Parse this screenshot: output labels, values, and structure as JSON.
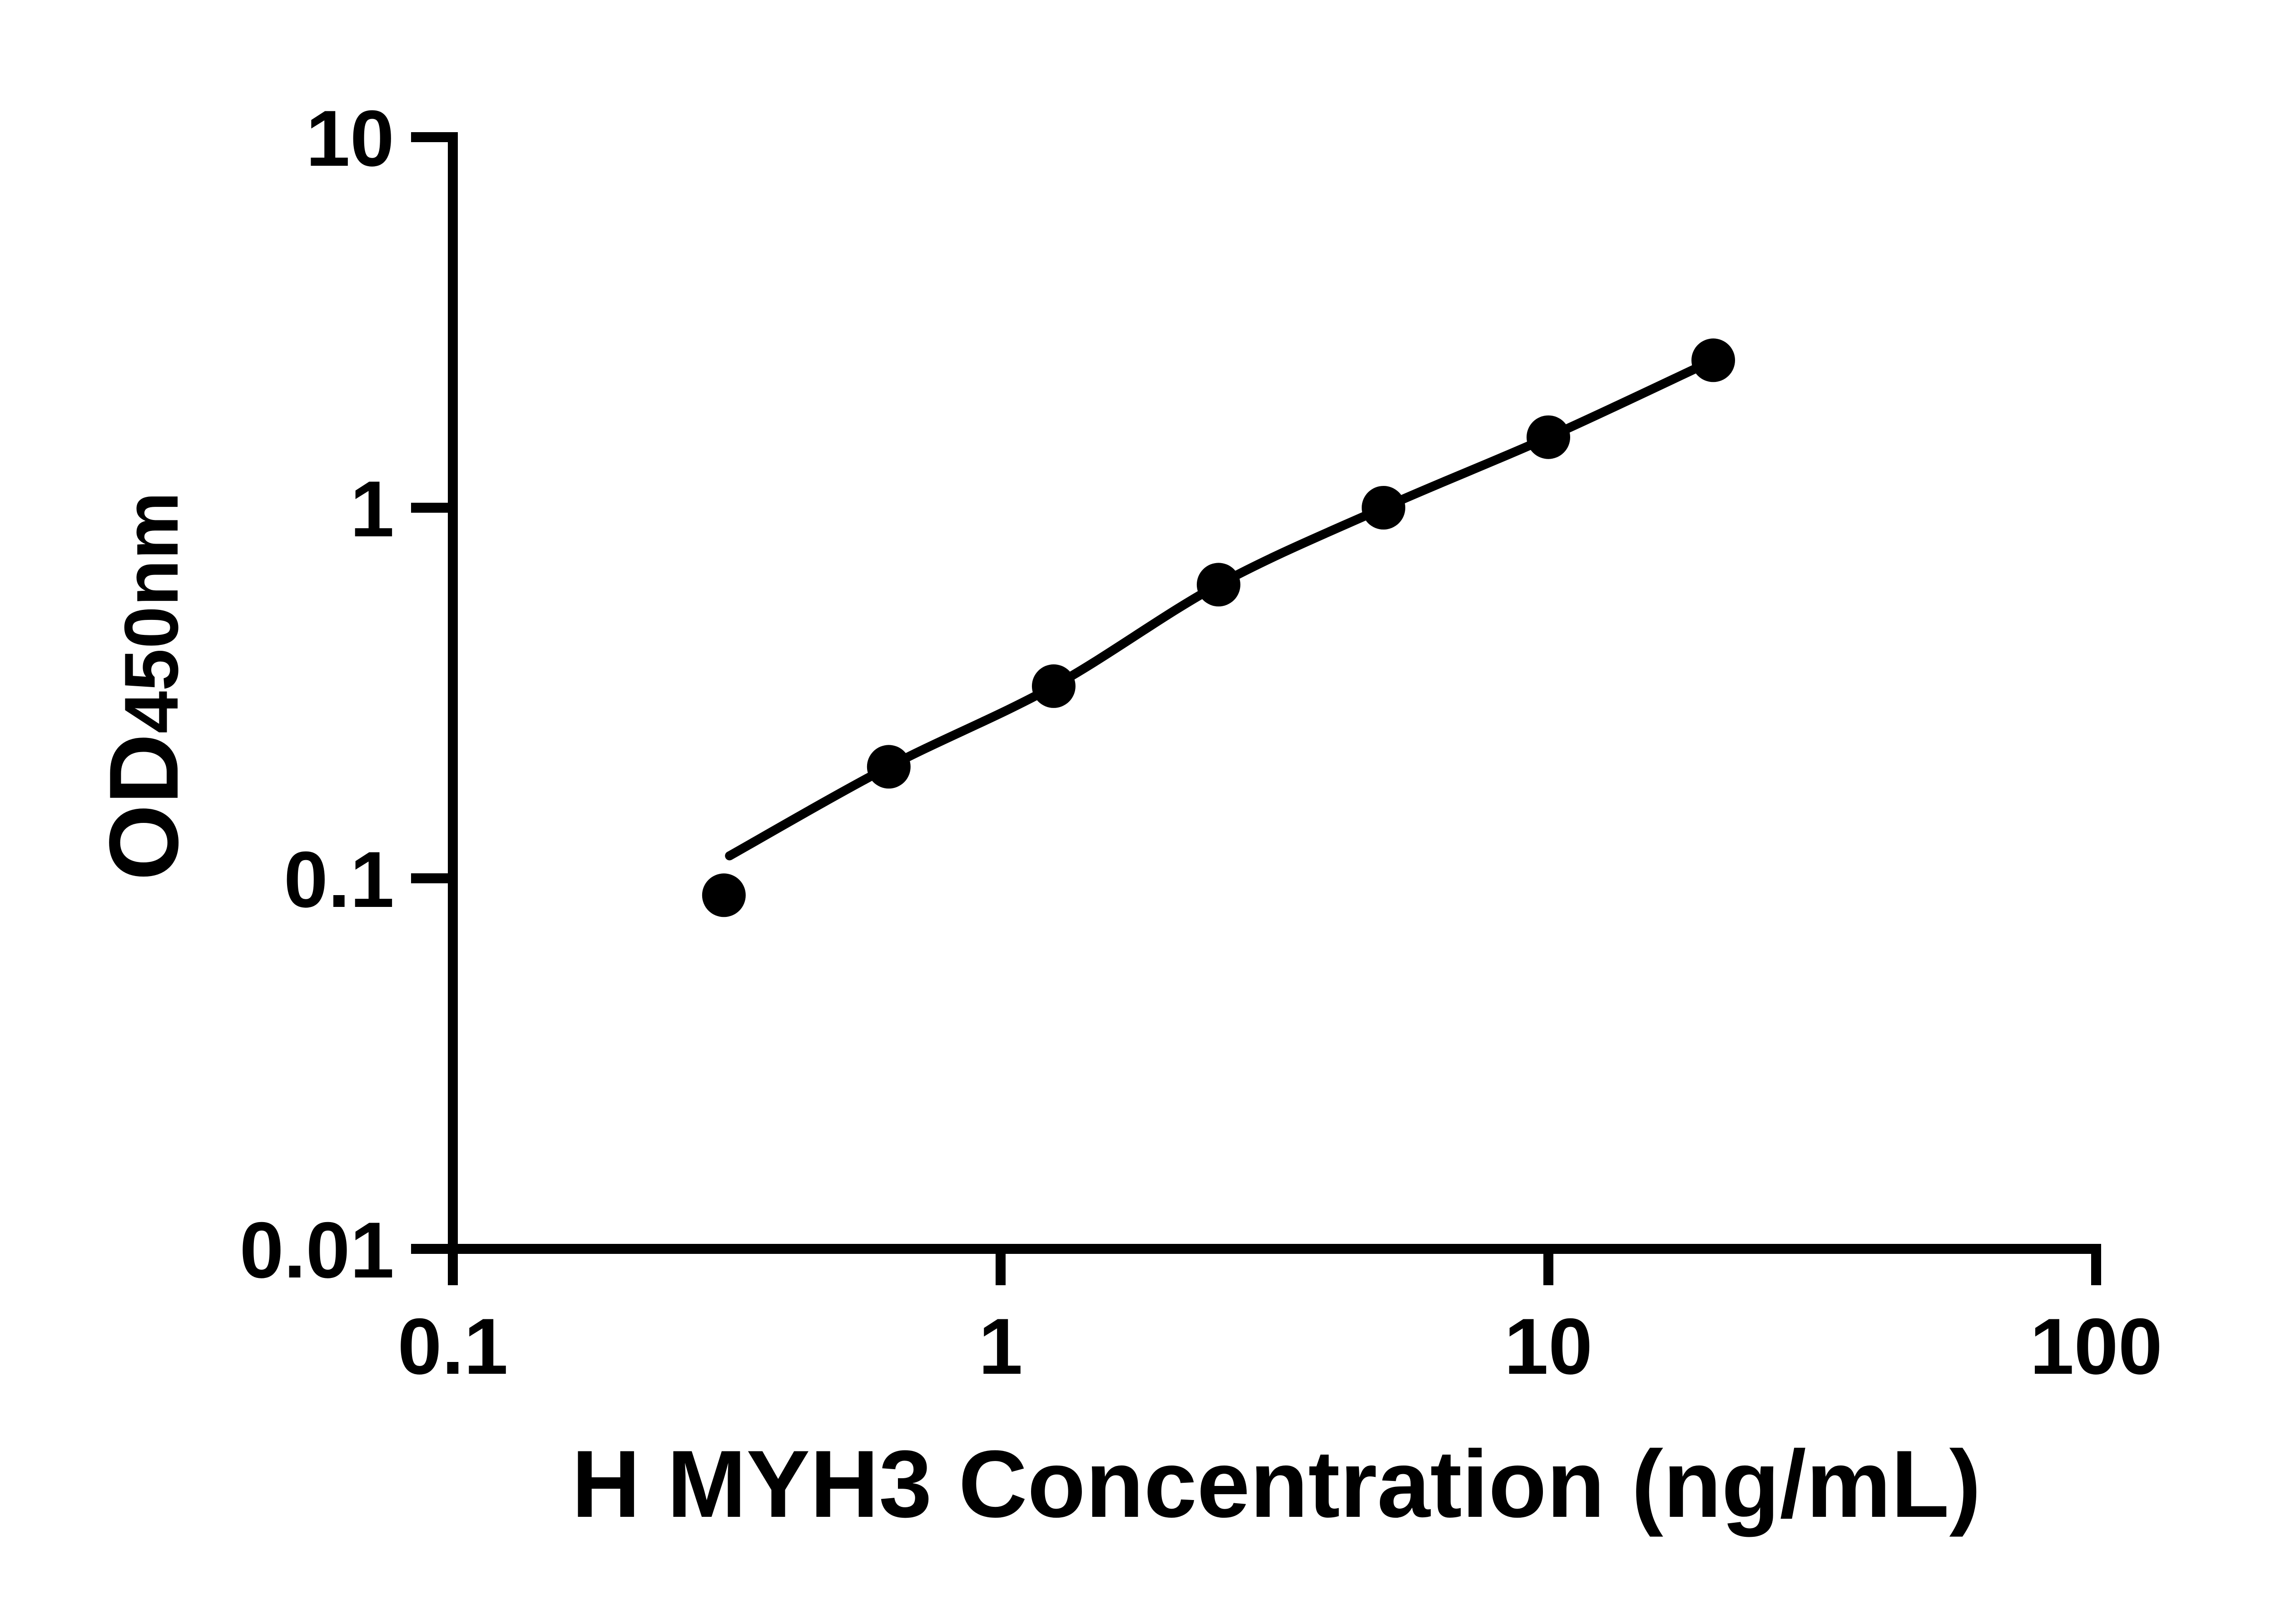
{
  "figure": {
    "background_color": "#ffffff",
    "ink_color": "#000000"
  },
  "chart_data": {
    "type": "scatter",
    "title": "",
    "xlabel": "H MYH3 Concentration (ng/mL)",
    "ylabel": "OD450nm",
    "ylabel_base": "OD",
    "ylabel_subscript": "450nm",
    "x_scale": "log",
    "y_scale": "log",
    "xlim": [
      0.1,
      100
    ],
    "ylim": [
      0.01,
      10
    ],
    "x_ticks": [
      0.1,
      1,
      10,
      100
    ],
    "y_ticks": [
      0.01,
      0.1,
      1,
      10
    ],
    "x_tick_labels": [
      "0.1",
      "1",
      "10",
      "100"
    ],
    "y_tick_labels": [
      "0.01",
      "0.1",
      "1",
      "10"
    ],
    "grid": false,
    "legend": false,
    "series": [
      {
        "marker": "filled-circle",
        "color": "#000000",
        "points": [
          {
            "x": 0.3125,
            "y": 0.09
          },
          {
            "x": 0.625,
            "y": 0.2
          },
          {
            "x": 1.25,
            "y": 0.33
          },
          {
            "x": 2.5,
            "y": 0.62
          },
          {
            "x": 5,
            "y": 1.0
          },
          {
            "x": 10,
            "y": 1.55
          },
          {
            "x": 20,
            "y": 2.5
          }
        ]
      }
    ],
    "trend_line": {
      "present": true,
      "start": {
        "x": 0.32,
        "y": 0.115
      },
      "through_points_from_index": 1
    }
  }
}
